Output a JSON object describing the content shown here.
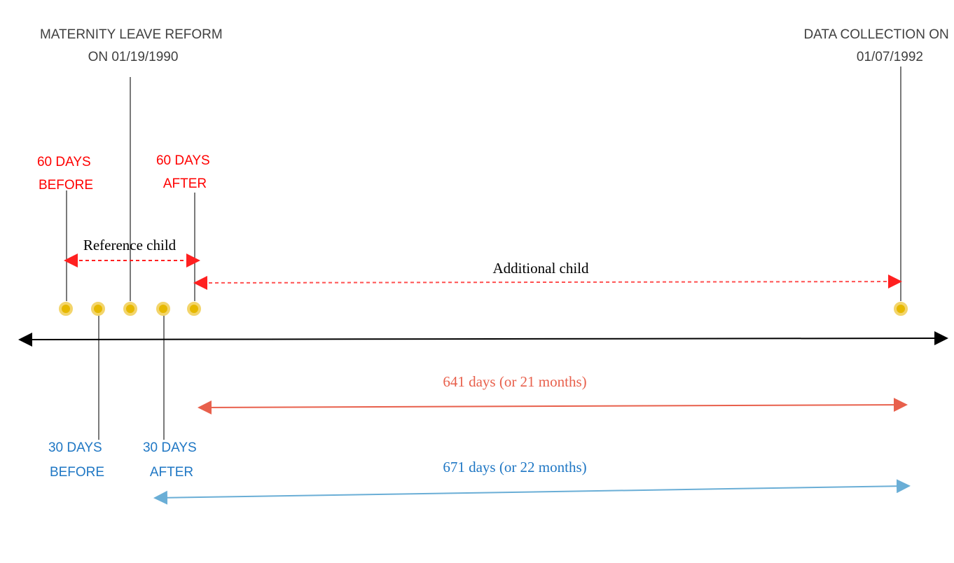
{
  "labels": {
    "reform": [
      "MATERNITY LEAVE REFORM",
      "ON  01/19/1990"
    ],
    "data_collection": [
      "DATA COLLECTION ON",
      "01/07/1992"
    ],
    "sixty_before": [
      "60 DAYS",
      "BEFORE"
    ],
    "sixty_after": [
      "60 DAYS",
      "AFTER"
    ],
    "thirty_before": [
      "30 DAYS",
      "BEFORE"
    ],
    "thirty_after": [
      "30 DAYS",
      "AFTER"
    ],
    "reference_child": "Reference child",
    "additional_child": "Additional child",
    "span_641": "641 days (or 21 months)",
    "span_671": "671 days (or 22 months)"
  }
}
